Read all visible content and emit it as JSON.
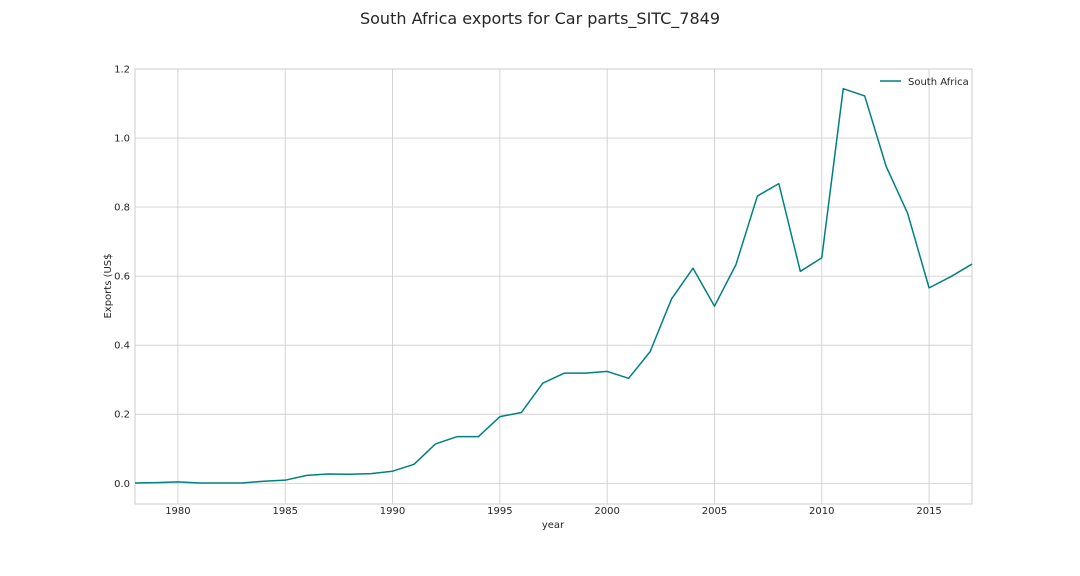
{
  "chart_data": {
    "type": "line",
    "title": "South Africa exports for Car parts_SITC_7849",
    "xlabel": "year",
    "ylabel": "Exports (US$",
    "xlim": [
      1978,
      2017
    ],
    "ylim": [
      -0.06,
      1.2
    ],
    "xticks": [
      1980,
      1985,
      1990,
      1995,
      2000,
      2005,
      2010,
      2015
    ],
    "yticks": [
      0.0,
      0.2,
      0.4,
      0.6,
      0.8,
      1.0,
      1.2
    ],
    "grid": true,
    "legend_position": "top-right",
    "series": [
      {
        "name": "South Africa",
        "color": "#008080",
        "x": [
          1978,
          1979,
          1980,
          1981,
          1982,
          1983,
          1984,
          1985,
          1986,
          1987,
          1988,
          1989,
          1990,
          1991,
          1992,
          1993,
          1994,
          1995,
          1996,
          1997,
          1998,
          1999,
          2000,
          2001,
          2002,
          2003,
          2004,
          2005,
          2006,
          2007,
          2008,
          2009,
          2010,
          2011,
          2012,
          2013,
          2014,
          2015,
          2016,
          2017
        ],
        "y": [
          0.001,
          0.002,
          0.004,
          0.001,
          0.001,
          0.001,
          0.006,
          0.009,
          0.023,
          0.027,
          0.026,
          0.028,
          0.035,
          0.055,
          0.114,
          0.135,
          0.135,
          0.193,
          0.205,
          0.29,
          0.319,
          0.319,
          0.324,
          0.304,
          0.381,
          0.534,
          0.623,
          0.513,
          0.633,
          0.832,
          0.868,
          0.614,
          0.653,
          1.143,
          1.122,
          0.918,
          0.782,
          0.566,
          0.598,
          0.635
        ]
      }
    ]
  }
}
